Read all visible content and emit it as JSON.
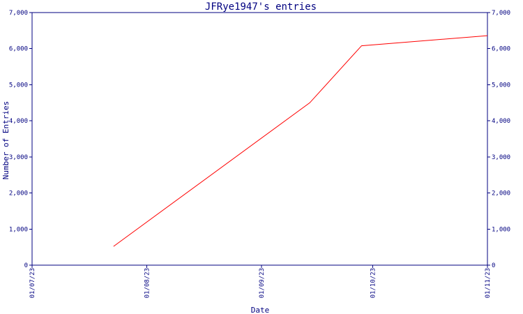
{
  "chart_data": {
    "type": "line",
    "title": "JFRye1947's entries",
    "xlabel": "Date",
    "ylabel": "Number of Entries",
    "x_ticks": [
      "01/07/23",
      "01/08/23",
      "01/09/23",
      "01/10/23",
      "01/11/23"
    ],
    "x_tick_dates": [
      "2023-07-01",
      "2023-08-01",
      "2023-09-01",
      "2023-10-01",
      "2023-11-01"
    ],
    "xlim": [
      "2023-07-01",
      "2023-11-01"
    ],
    "y_ticks": [
      "0",
      "1,000",
      "2,000",
      "3,000",
      "4,000",
      "5,000",
      "6,000",
      "7,000"
    ],
    "y_tick_values": [
      0,
      1000,
      2000,
      3000,
      4000,
      5000,
      6000,
      7000
    ],
    "ylim": [
      0,
      7000
    ],
    "grid": false,
    "secondary_y_axis": "mirrors left axis",
    "series": [
      {
        "color": "#ff0000",
        "points": [
          {
            "x": "2023-07-23",
            "y": 520
          },
          {
            "x": "2023-09-14",
            "y": 4500
          },
          {
            "x": "2023-09-28",
            "y": 6080
          },
          {
            "x": "2023-11-01",
            "y": 6360
          }
        ]
      }
    ]
  },
  "colors": {
    "axis": "#000080",
    "text": "#000080",
    "line": "#ff0000",
    "background": "#ffffff"
  }
}
